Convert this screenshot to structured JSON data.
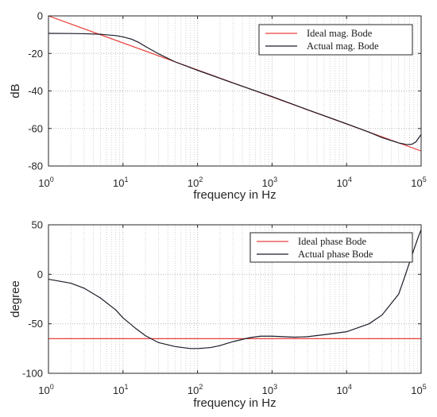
{
  "chart_data": [
    {
      "type": "line",
      "xscale": "log",
      "xlim": [
        1,
        100000
      ],
      "ylim": [
        -80,
        0
      ],
      "xlabel": "frequency in Hz",
      "ylabel": "dB",
      "x_tick_labels": [
        {
          "base": "10",
          "exp": "0"
        },
        {
          "base": "10",
          "exp": "1"
        },
        {
          "base": "10",
          "exp": "2"
        },
        {
          "base": "10",
          "exp": "3"
        },
        {
          "base": "10",
          "exp": "4"
        },
        {
          "base": "10",
          "exp": "5"
        }
      ],
      "y_ticks": [
        0,
        -20,
        -40,
        -60,
        -80
      ],
      "y_tick_labels": [
        "0",
        "-20",
        "-40",
        "-60",
        "-80"
      ],
      "grid": "dotted, major and minor on x",
      "legend_position": "top-right",
      "series": [
        {
          "name": "Ideal mag. Bode",
          "color": "#e8413c",
          "x": [
            1,
            100000
          ],
          "y": [
            0,
            -72
          ]
        },
        {
          "name": "Actual mag. Bode",
          "color": "#1c1c2a",
          "x": [
            1,
            2,
            3,
            5,
            8,
            10,
            13,
            16,
            20,
            30,
            50,
            100,
            300,
            1000,
            3000,
            10000,
            20000,
            30000,
            50000,
            65000,
            75000,
            85000,
            100000
          ],
          "y": [
            -9.3,
            -9.4,
            -9.5,
            -9.8,
            -10.5,
            -11.2,
            -12.4,
            -14.0,
            -16.3,
            -20.2,
            -24.5,
            -29.0,
            -35.8,
            -43.0,
            -50.0,
            -57.5,
            -62.0,
            -64.9,
            -67.7,
            -68.6,
            -68.4,
            -67.2,
            -63.2
          ]
        }
      ]
    },
    {
      "type": "line",
      "xscale": "log",
      "xlim": [
        1,
        100000
      ],
      "ylim": [
        -100,
        50
      ],
      "xlabel": "frequency in Hz",
      "ylabel": "degree",
      "x_tick_labels": [
        {
          "base": "10",
          "exp": "0"
        },
        {
          "base": "10",
          "exp": "1"
        },
        {
          "base": "10",
          "exp": "2"
        },
        {
          "base": "10",
          "exp": "3"
        },
        {
          "base": "10",
          "exp": "4"
        },
        {
          "base": "10",
          "exp": "5"
        }
      ],
      "y_ticks": [
        50,
        0,
        -50,
        -100
      ],
      "y_tick_labels": [
        "50",
        "0",
        "-50",
        "-100"
      ],
      "grid": "dotted, major and minor on x",
      "legend_position": "top-right",
      "series": [
        {
          "name": "Ideal phase Bode",
          "color": "#e8413c",
          "x": [
            1,
            100000
          ],
          "y": [
            -65,
            -65
          ]
        },
        {
          "name": "Actual phase Bode",
          "color": "#1c1c2a",
          "x": [
            1,
            2,
            3,
            5,
            8,
            10,
            15,
            20,
            30,
            50,
            80,
            100,
            150,
            200,
            300,
            500,
            700,
            1000,
            2000,
            3000,
            5000,
            10000,
            20000,
            30000,
            50000,
            60000,
            70000,
            80000,
            90000,
            100000
          ],
          "y": [
            -5,
            -9,
            -14,
            -24,
            -36,
            -44,
            -55,
            -62,
            -69,
            -73,
            -75,
            -75,
            -74,
            -72,
            -68,
            -64,
            -62.5,
            -62.5,
            -63.5,
            -63,
            -61,
            -58,
            -50,
            -41,
            -20,
            -3,
            12,
            25,
            36,
            45
          ]
        }
      ]
    }
  ]
}
